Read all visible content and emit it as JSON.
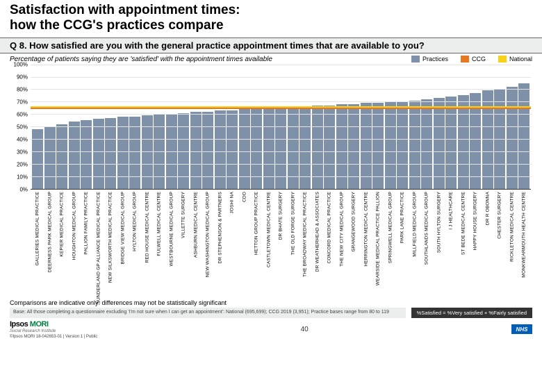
{
  "title": "Satisfaction with appointment times:\nhow the CCG's practices compare",
  "question": "Q 8. How satisfied are you with the general practice appointment times that are available to you?",
  "subtitle": "Percentage of patients saying they are 'satisfied' with the appointment times available",
  "legend": {
    "practices": {
      "label": "Practices",
      "color": "#7f91a8"
    },
    "ccg": {
      "label": "CCG",
      "color": "#e87722"
    },
    "national": {
      "label": "National",
      "color": "#f7d117"
    }
  },
  "chart": {
    "ylim": [
      0,
      100
    ],
    "ytick_step": 10,
    "bar_color": "#7f91a8",
    "grid_color": "#e3e3e3",
    "ccg_line": {
      "value": 64,
      "color": "#e87722"
    },
    "national_line": {
      "value": 65,
      "color": "#f7d117"
    },
    "practices": [
      {
        "name": "GALLERIES MEDICAL PRACTICE",
        "value": 48
      },
      {
        "name": "DEERNESS PARK MEDICAL GROUP",
        "value": 50
      },
      {
        "name": "KEPIER MEDICAL PRACTICE",
        "value": 52
      },
      {
        "name": "HOUGHTON MEDICAL GROUP",
        "value": 54
      },
      {
        "name": "PALLION FAMILY PRACTICE",
        "value": 55
      },
      {
        "name": "SUNDERLAND GP ALLIANCE MEDICAL PRACTICE",
        "value": 56
      },
      {
        "name": "NEW SILKSWORTH MEDICAL PRACTICE",
        "value": 57
      },
      {
        "name": "BRIDGE VIEW MEDICAL GROUP",
        "value": 58
      },
      {
        "name": "HYLTON MEDICAL GROUP",
        "value": 58
      },
      {
        "name": "RED HOUSE MEDICAL CENTRE",
        "value": 59
      },
      {
        "name": "FULWELL MEDICAL CENTRE",
        "value": 60
      },
      {
        "name": "WESTBOURNE MEDICAL GROUP",
        "value": 60
      },
      {
        "name": "VILLETTE SURGERY",
        "value": 61
      },
      {
        "name": "ASHBURN MEDICAL CENTRE",
        "value": 62
      },
      {
        "name": "NEW WASHINGTON MEDICAL GROUP",
        "value": 62
      },
      {
        "name": "DR STEPHENSON & PARTNERS",
        "value": 63
      },
      {
        "name": "JOSHI NA",
        "value": 63
      },
      {
        "name": "CDO",
        "value": 64
      },
      {
        "name": "HETTON GROUP PRACTICE",
        "value": 64
      },
      {
        "name": "CASTLETOWN MEDICAL CENTRE",
        "value": 65
      },
      {
        "name": "DR BHATE SURGERY",
        "value": 65
      },
      {
        "name": "THE OLD FORGE SURGERY",
        "value": 66
      },
      {
        "name": "THE BROADWAY MEDICAL PRACTICE",
        "value": 66
      },
      {
        "name": "DR WEATHERHEAD & ASSOCIATES",
        "value": 67
      },
      {
        "name": "CONCORD MEDICAL PRACTICE",
        "value": 67
      },
      {
        "name": "THE NEW CITY MEDICAL GROUP",
        "value": 68
      },
      {
        "name": "GRANGEWOOD SURGERY",
        "value": 68
      },
      {
        "name": "HERRINGTON MEDICAL CENTRE",
        "value": 69
      },
      {
        "name": "WEARSIDE MEDICAL PRACTICE PALLION",
        "value": 69
      },
      {
        "name": "SPRINGWELL MEDICAL GROUP",
        "value": 70
      },
      {
        "name": "PARK LANE PRACTICE",
        "value": 70
      },
      {
        "name": "MILLFIELD MEDICAL GROUP",
        "value": 71
      },
      {
        "name": "SOUTHLANDS MEDICAL GROUP",
        "value": 72
      },
      {
        "name": "SOUTH HYLTON SURGERY",
        "value": 73
      },
      {
        "name": "I J HEALTHCARE",
        "value": 74
      },
      {
        "name": "ST BEDE MEDICAL CENTRE",
        "value": 75
      },
      {
        "name": "HAPPY HOUSE SURGERY",
        "value": 77
      },
      {
        "name": "DR R OBONNA",
        "value": 79
      },
      {
        "name": "CHESTER SURGERY",
        "value": 80
      },
      {
        "name": "RICKLETON MEDICAL CENTRE",
        "value": 82
      },
      {
        "name": "MONKWEARMOUTH HEALTH CENTRE",
        "value": 85
      }
    ]
  },
  "comparison_note": "Comparisons are indicative only: differences may not be statistically significant",
  "base_note": "Base: All those completing a questionnaire excluding 'I'm not sure when I can get an appointment': National (695,699); CCG 2019 (3,951); Practice bases range from 80 to 119",
  "sat_note": "%Satisfied = %Very satisfied + %Fairly satisfied",
  "page": "40",
  "ipsos_brand": "Ipsos",
  "ipsos_m": "MORI",
  "sri": "Social Research Institute",
  "copyright": "©Ipsos MORI   18-042653-01 | Version 1 | Public",
  "nhs": "NHS"
}
